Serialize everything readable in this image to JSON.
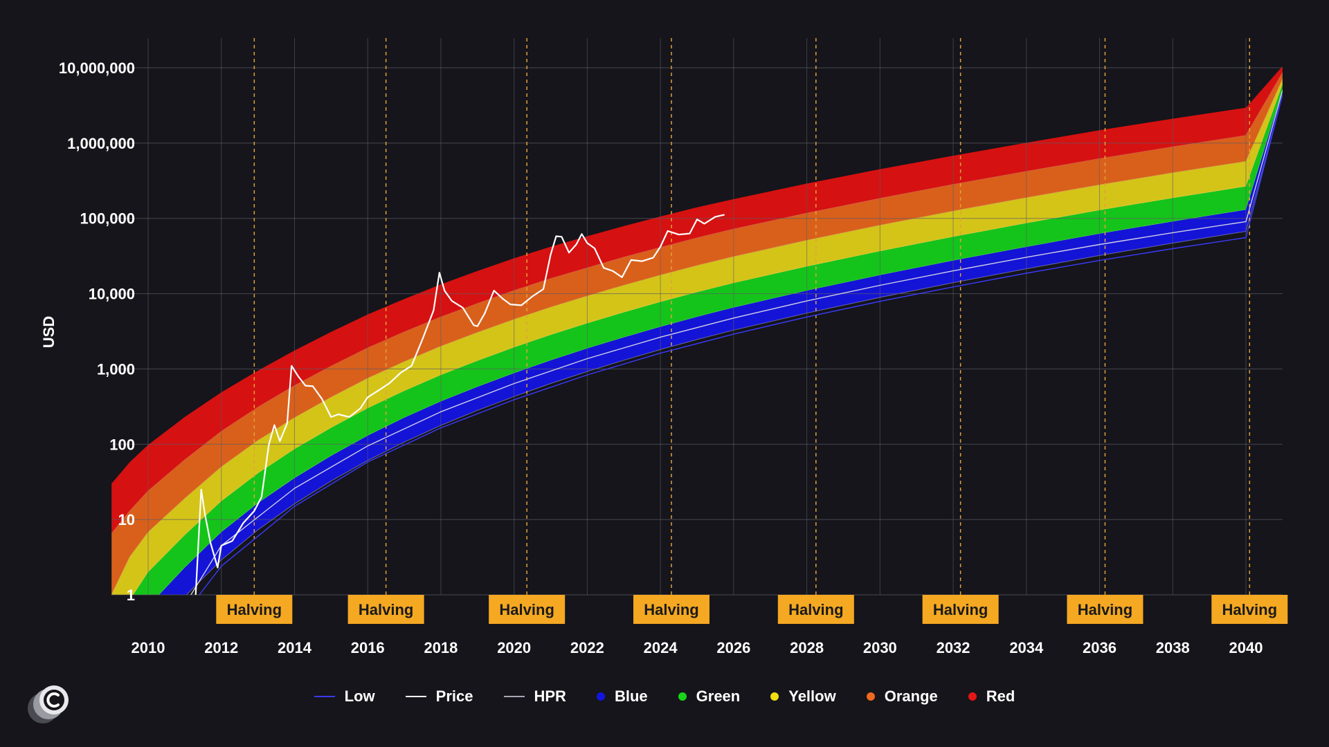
{
  "chart_data": {
    "type": "line",
    "title": "",
    "xlabel": "",
    "ylabel": "USD",
    "y_scale": "log",
    "ylim": [
      1,
      10000000
    ],
    "xlim": [
      2009.0,
      2041.0
    ],
    "y_ticks": [
      1,
      10,
      100,
      1000,
      10000,
      100000,
      1000000,
      10000000
    ],
    "y_tick_labels": [
      "1",
      "10",
      "100",
      "1,000",
      "10,000",
      "100,000",
      "1,000,000",
      "10,000,000"
    ],
    "x_ticks": [
      2010,
      2012,
      2014,
      2016,
      2018,
      2020,
      2022,
      2024,
      2026,
      2028,
      2030,
      2032,
      2034,
      2036,
      2038,
      2040
    ],
    "x_tick_labels": [
      "2010",
      "2012",
      "2014",
      "2016",
      "2018",
      "2020",
      "2022",
      "2024",
      "2026",
      "2028",
      "2030",
      "2032",
      "2034",
      "2036",
      "2038",
      "2040"
    ],
    "grid": true,
    "halvings": [
      {
        "x": 2012.9,
        "label": "Halving"
      },
      {
        "x": 2016.5,
        "label": "Halving"
      },
      {
        "x": 2020.35,
        "label": "Halving"
      },
      {
        "x": 2024.3,
        "label": "Halving"
      },
      {
        "x": 2028.25,
        "label": "Halving"
      },
      {
        "x": 2032.2,
        "label": "Halving"
      },
      {
        "x": 2036.15,
        "label": "Halving"
      },
      {
        "x": 2040.1,
        "label": "Halving"
      }
    ],
    "bands": {
      "x": [
        2009.0,
        2009.5,
        2010.0,
        2011.0,
        2012.0,
        2013.0,
        2014.0,
        2015.0,
        2016.0,
        2017.0,
        2018.0,
        2019.0,
        2020.0,
        2021.0,
        2022.0,
        2023.0,
        2024.0,
        2025.0,
        2026.0,
        2028.0,
        2030.0,
        2032.0,
        2034.0,
        2036.0,
        2038.0,
        2040.0,
        2041.0
      ],
      "red_top": [
        30,
        58,
        98,
        230,
        490,
        950,
        1760,
        3100,
        5300,
        8500,
        13300,
        20000,
        29500,
        42000,
        58000,
        79000,
        106000,
        140000,
        180000,
        290000,
        450000,
        680000,
        1010000,
        1480000,
        2110000,
        2950000,
        10500000
      ],
      "series": [
        {
          "name": "Red",
          "color": "#d61111",
          "lower": [
            6.5,
            13,
            24,
            62,
            148,
            310,
            600,
            1090,
            1900,
            3100,
            4900,
            7400,
            11000,
            15800,
            22000,
            30500,
            41000,
            55000,
            72000,
            117000,
            184000,
            282000,
            420000,
            620000,
            890000,
            1260000,
            8600000
          ]
        },
        {
          "name": "Orange",
          "color": "#d9601b",
          "lower": [
            1.0,
            3.2,
            6.8,
            19,
            50,
            112,
            225,
            420,
            750,
            1250,
            2000,
            3050,
            4550,
            6600,
            9300,
            12900,
            17600,
            23600,
            31000,
            51000,
            81000,
            125000,
            188000,
            278000,
            402000,
            570000,
            7100000
          ]
        },
        {
          "name": "Yellow",
          "color": "#d4c418",
          "lower": [
            0.3,
            0.85,
            2.0,
            6.2,
            17.5,
            41,
            86,
            165,
            300,
            510,
            830,
            1280,
            1930,
            2830,
            4030,
            5650,
            7750,
            10450,
            13800,
            22900,
            36600,
            56900,
            86000,
            128000,
            186000,
            265000,
            6000000
          ]
        },
        {
          "name": "Green",
          "color": "#15c41a",
          "lower": [
            0.1,
            0.28,
            0.7,
            2.3,
            6.8,
            16.5,
            35.5,
            70,
            130,
            225,
            370,
            580,
            880,
            1300,
            1870,
            2630,
            3630,
            4920,
            6540,
            10950,
            17600,
            27500,
            41800,
            62500,
            91000,
            130000,
            5100000
          ]
        },
        {
          "name": "Blue",
          "color": "#1414d6",
          "lower": [
            0.04,
            0.11,
            0.27,
            0.95,
            2.9,
            7.3,
            16.2,
            32.5,
            61,
            107,
            178,
            282,
            430,
            640,
            925,
            1305,
            1810,
            2460,
            3280,
            5520,
            8920,
            14000,
            21400,
            32100,
            46900,
            67200,
            4300000
          ]
        }
      ]
    },
    "lines": [
      {
        "name": "HPR",
        "color": "#cfcfe6",
        "x": [
          2010.0,
          2012.0,
          2014.0,
          2016.0,
          2018.0,
          2020.0,
          2022.0,
          2024.0,
          2026.0,
          2028.0,
          2030.0,
          2032.0,
          2034.0,
          2036.0,
          2038.0,
          2040.0,
          2041.0
        ],
        "y": [
          0.12,
          4.5,
          26,
          95,
          270,
          640,
          1370,
          2650,
          4750,
          8000,
          12900,
          20100,
          30500,
          45000,
          64500,
          90500,
          5000000
        ]
      },
      {
        "name": "Low",
        "color": "#3b3bff",
        "x": [
          2011.4,
          2012.0,
          2014.0,
          2016.0,
          2018.0,
          2020.0,
          2022.0,
          2024.0,
          2026.0,
          2028.0,
          2030.0,
          2032.0,
          2034.0,
          2036.0,
          2038.0,
          2040.0,
          2041.0
        ],
        "y": [
          1,
          2.4,
          15,
          58,
          165,
          390,
          835,
          1620,
          2900,
          4900,
          7900,
          12300,
          18700,
          27600,
          39600,
          55600,
          4400000
        ]
      },
      {
        "name": "Price",
        "color": "#ffffff",
        "x": [
          2011.3,
          2011.45,
          2011.55,
          2011.7,
          2011.9,
          2012.0,
          2012.3,
          2012.6,
          2012.9,
          2013.1,
          2013.3,
          2013.45,
          2013.6,
          2013.8,
          2013.92,
          2014.1,
          2014.3,
          2014.5,
          2014.75,
          2015.0,
          2015.2,
          2015.5,
          2015.8,
          2016.0,
          2016.3,
          2016.6,
          2016.9,
          2017.2,
          2017.5,
          2017.8,
          2017.96,
          2018.1,
          2018.3,
          2018.6,
          2018.9,
          2019.0,
          2019.2,
          2019.45,
          2019.7,
          2019.9,
          2020.2,
          2020.5,
          2020.8,
          2021.0,
          2021.15,
          2021.3,
          2021.5,
          2021.7,
          2021.85,
          2022.0,
          2022.2,
          2022.45,
          2022.7,
          2022.95,
          2023.2,
          2023.5,
          2023.8,
          2024.0,
          2024.2,
          2024.5,
          2024.8,
          2025.0,
          2025.2,
          2025.5,
          2025.75
        ],
        "y": [
          1,
          25,
          12,
          5,
          2.3,
          4.5,
          5.2,
          9,
          13,
          20,
          100,
          180,
          110,
          190,
          1100,
          800,
          600,
          590,
          400,
          230,
          250,
          230,
          300,
          420,
          520,
          650,
          890,
          1100,
          2500,
          6000,
          19000,
          11000,
          8000,
          6500,
          3800,
          3700,
          5500,
          11000,
          8500,
          7200,
          7000,
          9200,
          11500,
          33000,
          58000,
          57000,
          35000,
          45000,
          62000,
          47000,
          40000,
          22000,
          20000,
          16500,
          28000,
          27000,
          30000,
          42000,
          68000,
          61000,
          63000,
          97000,
          85000,
          105000,
          112000
        ]
      }
    ],
    "legend": {
      "position": "bottom-center",
      "items": [
        {
          "label": "Low",
          "kind": "line",
          "color": "#3b3bff"
        },
        {
          "label": "Price",
          "kind": "line",
          "color": "#ffffff"
        },
        {
          "label": "HPR",
          "kind": "line",
          "color": "#a9a9b6"
        },
        {
          "label": "Blue",
          "kind": "dot",
          "color": "#1414e0"
        },
        {
          "label": "Green",
          "kind": "dot",
          "color": "#18d418"
        },
        {
          "label": "Yellow",
          "kind": "dot",
          "color": "#f1df12"
        },
        {
          "label": "Orange",
          "kind": "dot",
          "color": "#ef6a1e"
        },
        {
          "label": "Red",
          "kind": "dot",
          "color": "#e41616"
        }
      ]
    },
    "colors": {
      "background": "#15151b",
      "grid": "#5b5b66",
      "halving_line": "#e0a23a",
      "halving_box": "#f5a821"
    }
  }
}
